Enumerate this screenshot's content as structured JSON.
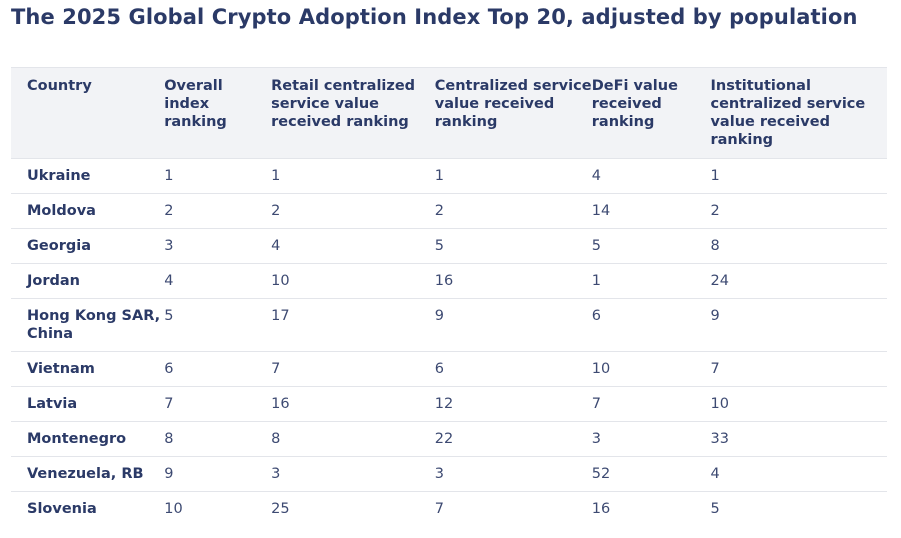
{
  "title": "The 2025 Global Crypto Adoption Index Top 20, adjusted by population",
  "table": {
    "headers": [
      "Country",
      "Overall index ranking",
      "Retail centralized service value received ranking",
      "Centralized service value received ranking",
      "DeFi value received ranking",
      "Institutional centralized service value received ranking"
    ],
    "rows": [
      [
        "Ukraine",
        "1",
        "1",
        "1",
        "4",
        "1"
      ],
      [
        "Moldova",
        "2",
        "2",
        "2",
        "14",
        "2"
      ],
      [
        "Georgia",
        "3",
        "4",
        "5",
        "5",
        "8"
      ],
      [
        "Jordan",
        "4",
        "10",
        "16",
        "1",
        "24"
      ],
      [
        "Hong Kong SAR, China",
        "5",
        "17",
        "9",
        "6",
        "9"
      ],
      [
        "Vietnam",
        "6",
        "7",
        "6",
        "10",
        "7"
      ],
      [
        "Latvia",
        "7",
        "16",
        "12",
        "7",
        "10"
      ],
      [
        "Montenegro",
        "8",
        "8",
        "22",
        "3",
        "33"
      ],
      [
        "Venezuela, RB",
        "9",
        "3",
        "3",
        "52",
        "4"
      ],
      [
        "Slovenia",
        "10",
        "25",
        "7",
        "16",
        "5"
      ]
    ]
  }
}
